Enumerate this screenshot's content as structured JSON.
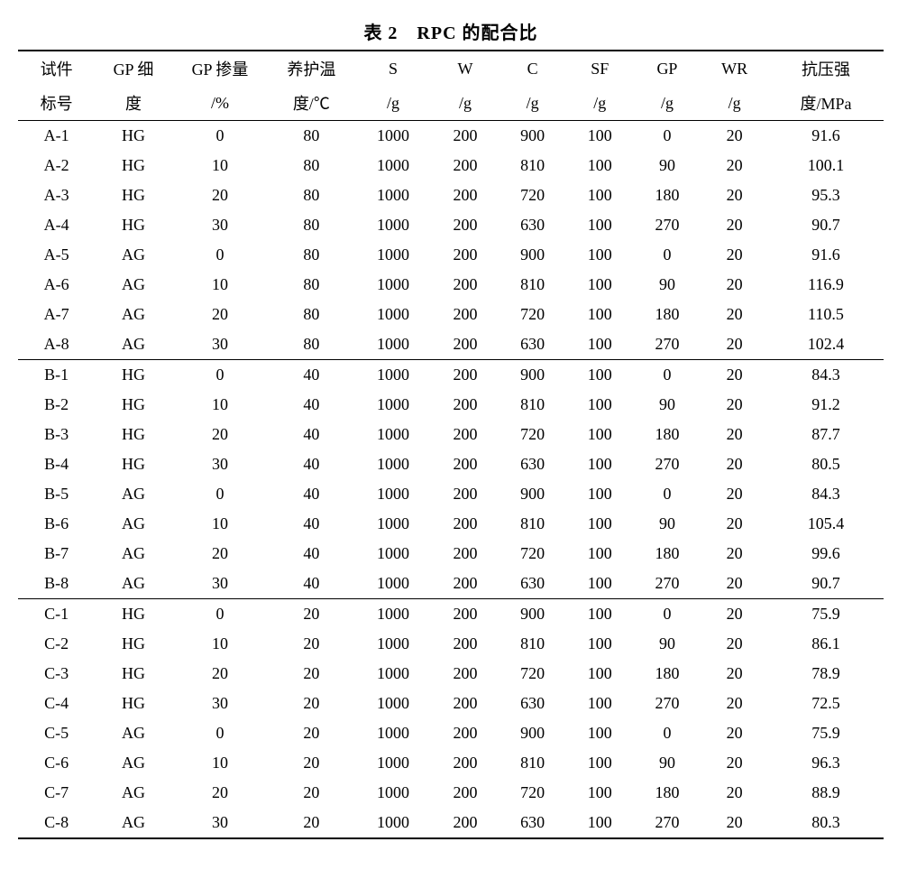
{
  "table": {
    "caption": "表 2　RPC 的配合比",
    "columns": [
      {
        "line1": "试件",
        "line2": "标号"
      },
      {
        "line1": "GP 细",
        "line2": "度"
      },
      {
        "line1": "GP 掺量",
        "line2": "/%"
      },
      {
        "line1": "养护温",
        "line2": "度/℃"
      },
      {
        "line1": "S",
        "line2": "/g"
      },
      {
        "line1": "W",
        "line2": "/g"
      },
      {
        "line1": "C",
        "line2": "/g"
      },
      {
        "line1": "SF",
        "line2": "/g"
      },
      {
        "line1": "GP",
        "line2": "/g"
      },
      {
        "line1": "WR",
        "line2": "/g"
      },
      {
        "line1": "抗压强",
        "line2": "度/MPa"
      }
    ],
    "col_classes": [
      "col-spec",
      "col-gpfine",
      "col-gppct",
      "col-temp",
      "col-sg",
      "col-wg",
      "col-cg",
      "col-sfg",
      "col-gpg",
      "col-wrg",
      "col-strength"
    ],
    "groups": [
      {
        "rows": [
          [
            "A-1",
            "HG",
            "0",
            "80",
            "1000",
            "200",
            "900",
            "100",
            "0",
            "20",
            "91.6"
          ],
          [
            "A-2",
            "HG",
            "10",
            "80",
            "1000",
            "200",
            "810",
            "100",
            "90",
            "20",
            "100.1"
          ],
          [
            "A-3",
            "HG",
            "20",
            "80",
            "1000",
            "200",
            "720",
            "100",
            "180",
            "20",
            "95.3"
          ],
          [
            "A-4",
            "HG",
            "30",
            "80",
            "1000",
            "200",
            "630",
            "100",
            "270",
            "20",
            "90.7"
          ],
          [
            "A-5",
            "AG",
            "0",
            "80",
            "1000",
            "200",
            "900",
            "100",
            "0",
            "20",
            "91.6"
          ],
          [
            "A-6",
            "AG",
            "10",
            "80",
            "1000",
            "200",
            "810",
            "100",
            "90",
            "20",
            "116.9"
          ],
          [
            "A-7",
            "AG",
            "20",
            "80",
            "1000",
            "200",
            "720",
            "100",
            "180",
            "20",
            "110.5"
          ],
          [
            "A-8",
            "AG",
            "30",
            "80",
            "1000",
            "200",
            "630",
            "100",
            "270",
            "20",
            "102.4"
          ]
        ]
      },
      {
        "rows": [
          [
            "B-1",
            "HG",
            "0",
            "40",
            "1000",
            "200",
            "900",
            "100",
            "0",
            "20",
            "84.3"
          ],
          [
            "B-2",
            "HG",
            "10",
            "40",
            "1000",
            "200",
            "810",
            "100",
            "90",
            "20",
            "91.2"
          ],
          [
            "B-3",
            "HG",
            "20",
            "40",
            "1000",
            "200",
            "720",
            "100",
            "180",
            "20",
            "87.7"
          ],
          [
            "B-4",
            "HG",
            "30",
            "40",
            "1000",
            "200",
            "630",
            "100",
            "270",
            "20",
            "80.5"
          ],
          [
            "B-5",
            "AG",
            "0",
            "40",
            "1000",
            "200",
            "900",
            "100",
            "0",
            "20",
            "84.3"
          ],
          [
            "B-6",
            "AG",
            "10",
            "40",
            "1000",
            "200",
            "810",
            "100",
            "90",
            "20",
            "105.4"
          ],
          [
            "B-7",
            "AG",
            "20",
            "40",
            "1000",
            "200",
            "720",
            "100",
            "180",
            "20",
            "99.6"
          ],
          [
            "B-8",
            "AG",
            "30",
            "40",
            "1000",
            "200",
            "630",
            "100",
            "270",
            "20",
            "90.7"
          ]
        ]
      },
      {
        "rows": [
          [
            "C-1",
            "HG",
            "0",
            "20",
            "1000",
            "200",
            "900",
            "100",
            "0",
            "20",
            "75.9"
          ],
          [
            "C-2",
            "HG",
            "10",
            "20",
            "1000",
            "200",
            "810",
            "100",
            "90",
            "20",
            "86.1"
          ],
          [
            "C-3",
            "HG",
            "20",
            "20",
            "1000",
            "200",
            "720",
            "100",
            "180",
            "20",
            "78.9"
          ],
          [
            "C-4",
            "HG",
            "30",
            "20",
            "1000",
            "200",
            "630",
            "100",
            "270",
            "20",
            "72.5"
          ],
          [
            "C-5",
            "AG",
            "0",
            "20",
            "1000",
            "200",
            "900",
            "100",
            "0",
            "20",
            "75.9"
          ],
          [
            "C-6",
            "AG",
            "10",
            "20",
            "1000",
            "200",
            "810",
            "100",
            "90",
            "20",
            "96.3"
          ],
          [
            "C-7",
            "AG",
            "20",
            "20",
            "1000",
            "200",
            "720",
            "100",
            "180",
            "20",
            "88.9"
          ],
          [
            "C-8",
            "AG",
            "30",
            "20",
            "1000",
            "200",
            "630",
            "100",
            "270",
            "20",
            "80.3"
          ]
        ]
      }
    ],
    "font_size_pt": 14,
    "caption_font_size_pt": 15,
    "background_color": "#ffffff",
    "text_color": "#000000",
    "rule_color": "#000000"
  }
}
